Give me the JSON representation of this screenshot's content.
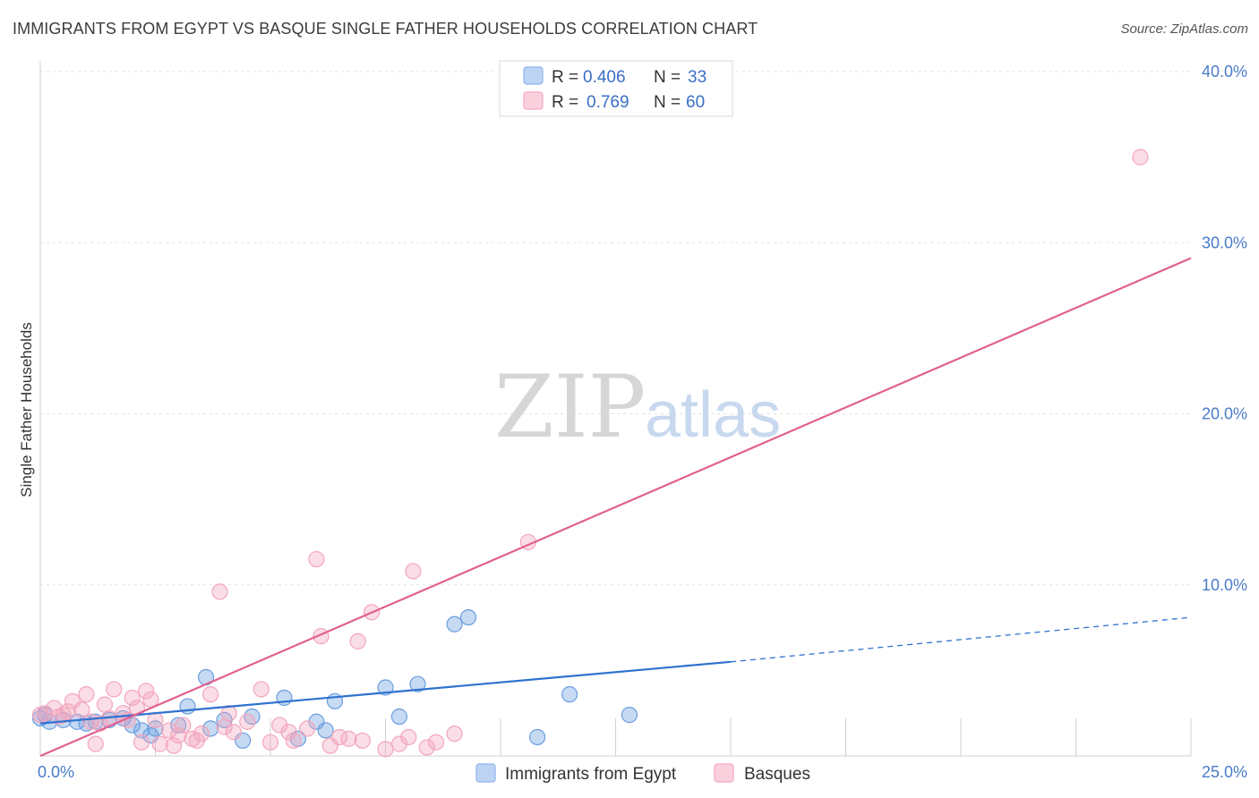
{
  "title": "IMMIGRANTS FROM EGYPT VS BASQUE SINGLE FATHER HOUSEHOLDS CORRELATION CHART",
  "source": "Source: ZipAtlas.com",
  "watermark": {
    "zip": "ZIP",
    "atlas": "atlas"
  },
  "legend": {
    "rows": [
      {
        "r_label": "R =",
        "r_value": "0.406",
        "n_label": "N =",
        "n_value": "33",
        "color": "#8fb4ea"
      },
      {
        "r_label": "R =",
        "r_value": "0.769",
        "n_label": "N =",
        "n_value": "60",
        "color": "#f5a9c0"
      }
    ]
  },
  "bottom_legend": [
    {
      "label": "Immigrants from Egypt",
      "color": "#8fb4ea"
    },
    {
      "label": "Basques",
      "color": "#f5a9c0"
    }
  ],
  "chart_data": {
    "type": "scatter",
    "title": "IMMIGRANTS FROM EGYPT VS BASQUE SINGLE FATHER HOUSEHOLDS CORRELATION CHART",
    "xlabel": "",
    "ylabel": "Single Father Households",
    "xlim": [
      0,
      25
    ],
    "ylim": [
      0,
      40
    ],
    "x_tick_labels": [
      "0.0%",
      "25.0%"
    ],
    "y_ticks": [
      10,
      20,
      30,
      40
    ],
    "y_tick_labels": [
      "10.0%",
      "20.0%",
      "30.0%",
      "40.0%"
    ],
    "grid": true,
    "legend_position": "top-center",
    "series": [
      {
        "name": "Immigrants from Egypt",
        "color": "#6a9ee0",
        "line_color": "#2f72d0",
        "trend": {
          "x0": 0,
          "y0": 1.9,
          "x1": 15,
          "y1": 5.5,
          "dash_to_x": 25,
          "dash_to_y": 8.1
        },
        "points": [
          [
            0.0,
            2.2
          ],
          [
            0.2,
            2.0
          ],
          [
            0.5,
            2.1
          ],
          [
            0.8,
            2.0
          ],
          [
            1.0,
            1.9
          ],
          [
            1.2,
            2.0
          ],
          [
            1.5,
            2.1
          ],
          [
            1.8,
            2.2
          ],
          [
            2.0,
            1.8
          ],
          [
            2.2,
            1.5
          ],
          [
            2.4,
            1.2
          ],
          [
            2.5,
            1.6
          ],
          [
            3.0,
            1.8
          ],
          [
            3.2,
            2.9
          ],
          [
            3.6,
            4.6
          ],
          [
            3.7,
            1.6
          ],
          [
            4.0,
            2.1
          ],
          [
            4.4,
            0.9
          ],
          [
            4.6,
            2.3
          ],
          [
            5.3,
            3.4
          ],
          [
            5.6,
            1.0
          ],
          [
            6.0,
            2.0
          ],
          [
            6.2,
            1.5
          ],
          [
            6.4,
            3.2
          ],
          [
            7.5,
            4.0
          ],
          [
            7.8,
            2.3
          ],
          [
            8.2,
            4.2
          ],
          [
            10.8,
            1.1
          ],
          [
            11.5,
            3.6
          ],
          [
            12.8,
            2.4
          ],
          [
            9.0,
            7.7
          ],
          [
            9.3,
            8.1
          ],
          [
            0.1,
            2.4
          ]
        ]
      },
      {
        "name": "Basques",
        "color": "#f3a5bc",
        "line_color": "#e0608e",
        "trend": {
          "x0": 0,
          "y0": 0.0,
          "x1": 25,
          "y1": 29.1
        },
        "points": [
          [
            0.1,
            2.5
          ],
          [
            0.3,
            2.8
          ],
          [
            0.4,
            2.3
          ],
          [
            0.6,
            2.6
          ],
          [
            0.7,
            3.2
          ],
          [
            0.9,
            2.7
          ],
          [
            1.0,
            3.6
          ],
          [
            1.1,
            2.0
          ],
          [
            1.2,
            0.7
          ],
          [
            1.3,
            1.9
          ],
          [
            1.5,
            2.2
          ],
          [
            1.6,
            3.9
          ],
          [
            1.8,
            2.5
          ],
          [
            1.9,
            2.1
          ],
          [
            2.0,
            3.4
          ],
          [
            2.1,
            2.8
          ],
          [
            2.2,
            0.8
          ],
          [
            2.4,
            3.3
          ],
          [
            2.5,
            2.1
          ],
          [
            2.6,
            0.7
          ],
          [
            2.8,
            1.5
          ],
          [
            2.9,
            0.6
          ],
          [
            3.0,
            1.2
          ],
          [
            3.1,
            1.8
          ],
          [
            3.3,
            1.0
          ],
          [
            3.5,
            1.3
          ],
          [
            3.7,
            3.6
          ],
          [
            3.9,
            9.6
          ],
          [
            4.0,
            1.7
          ],
          [
            4.2,
            1.4
          ],
          [
            4.5,
            2.0
          ],
          [
            4.8,
            3.9
          ],
          [
            5.0,
            0.8
          ],
          [
            5.2,
            1.8
          ],
          [
            5.5,
            0.9
          ],
          [
            5.8,
            1.6
          ],
          [
            6.0,
            11.5
          ],
          [
            6.1,
            7.0
          ],
          [
            6.3,
            0.6
          ],
          [
            6.5,
            1.1
          ],
          [
            6.9,
            6.7
          ],
          [
            7.0,
            0.9
          ],
          [
            7.2,
            8.4
          ],
          [
            7.8,
            0.7
          ],
          [
            8.0,
            1.1
          ],
          [
            8.1,
            10.8
          ],
          [
            8.6,
            0.8
          ],
          [
            9.0,
            1.3
          ],
          [
            10.6,
            12.5
          ],
          [
            23.9,
            35.0
          ],
          [
            0.0,
            2.4
          ],
          [
            0.5,
            2.4
          ],
          [
            1.4,
            3.0
          ],
          [
            2.3,
            3.8
          ],
          [
            3.4,
            0.9
          ],
          [
            4.1,
            2.5
          ],
          [
            5.4,
            1.4
          ],
          [
            6.7,
            1.0
          ],
          [
            7.5,
            0.4
          ],
          [
            8.4,
            0.5
          ]
        ]
      }
    ]
  }
}
